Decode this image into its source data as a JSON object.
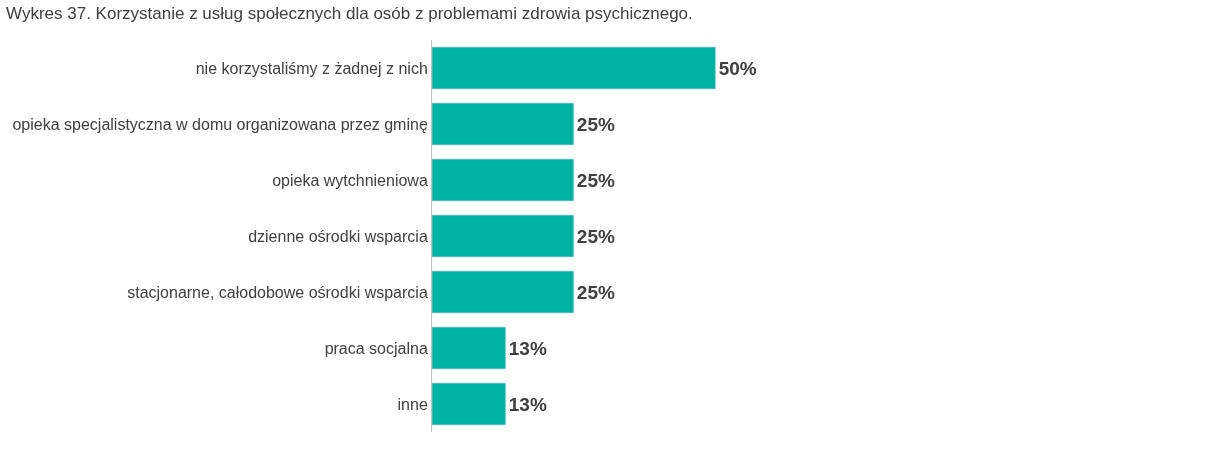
{
  "chart_data": {
    "type": "bar",
    "orientation": "horizontal",
    "title": "Wykres 37. Korzystanie z usług społecznych dla osób z problemami zdrowia psychicznego.",
    "categories": [
      "nie korzystaliśmy z żadnej z nich",
      "opieka specjalistyczna w domu organizowana przez gminę",
      "opieka wytchnieniowa",
      "dzienne ośrodki wsparcia",
      "stacjonarne, całodobowe ośrodki wsparcia",
      "praca socjalna",
      "inne"
    ],
    "values": [
      50,
      25,
      25,
      25,
      25,
      13,
      13
    ],
    "value_labels": [
      "50%",
      "25%",
      "25%",
      "25%",
      "25%",
      "13%",
      "13%"
    ],
    "color": "#00b3a4"
  }
}
